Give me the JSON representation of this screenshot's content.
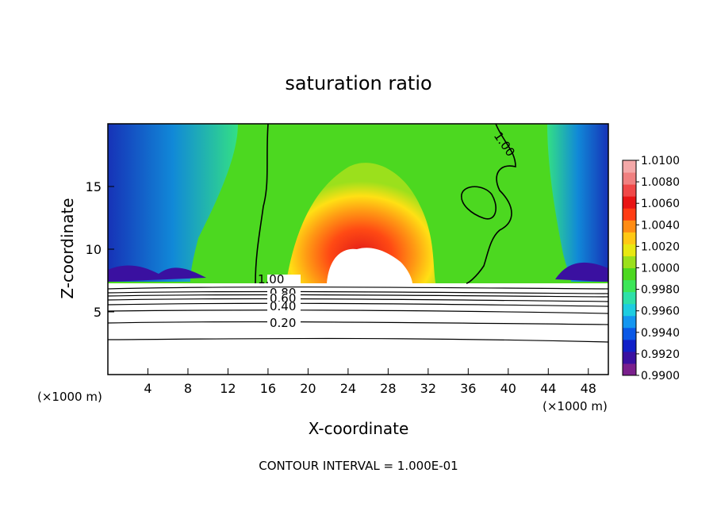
{
  "chart_data": {
    "type": "heatmap",
    "title": "saturation ratio",
    "xlabel": "X-coordinate",
    "ylabel": "Z-coordinate",
    "x_unit_left": "(×1000 m)",
    "x_unit_right": "(×1000 m)",
    "xlim": [
      0,
      50
    ],
    "ylim": [
      0,
      20
    ],
    "x_ticks": [
      4,
      8,
      12,
      16,
      20,
      24,
      28,
      32,
      36,
      40,
      44,
      48
    ],
    "y_ticks": [
      5,
      10,
      15
    ],
    "colorbar": {
      "ticks": [
        "0.9900",
        "0.9920",
        "0.9940",
        "0.9960",
        "0.9980",
        "1.0000",
        "1.0020",
        "1.0040",
        "1.0060",
        "1.0080",
        "1.0100"
      ],
      "colors": [
        "#7a1f8c",
        "#3a10a0",
        "#1020c8",
        "#0a58e6",
        "#1496f0",
        "#1ecde0",
        "#2ee0a8",
        "#3ce658",
        "#4cd820",
        "#9be01c",
        "#e8e812",
        "#ffc814",
        "#ff8c14",
        "#ff3c14",
        "#e81414",
        "#f04848",
        "#f08080",
        "#f4a8a8"
      ]
    },
    "contour_labels": [
      "1.00",
      "1.00",
      "0.80",
      "0.60",
      "0.40",
      "0.20"
    ],
    "footer": "CONTOUR INTERVAL = 1.000E-01"
  }
}
